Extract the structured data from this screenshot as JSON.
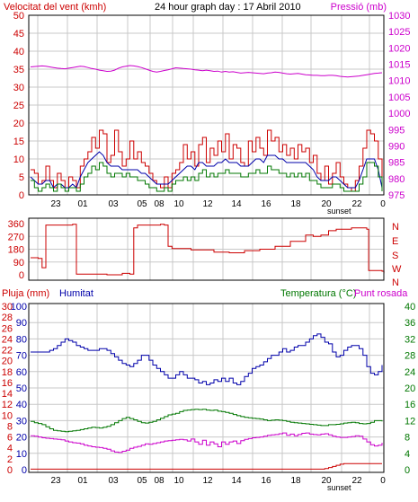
{
  "colors": {
    "red": "#cc0000",
    "blue": "#0000aa",
    "green": "#007700",
    "magenta": "#cc00cc",
    "axis_left": "#cc0000",
    "axis_pressure": "#cc00cc",
    "grid": "#c8c8c8",
    "frame": "#000000"
  },
  "hour_ticks": [
    "23",
    "01",
    "03",
    "05",
    "08",
    "10",
    "12",
    "14",
    "16",
    "18",
    "20",
    "22",
    "0"
  ],
  "sunset_label": "sunset",
  "chart_data": [
    {
      "type": "line",
      "title": "24 hour graph day : 17 Abril 2010",
      "ylabel": "Velocitat del vent (kmh)",
      "y2label": "Pressió (mb)",
      "ylim": [
        0,
        50
      ],
      "y2lim": [
        975,
        1030
      ],
      "yticks": [
        "0",
        "5",
        "10",
        "15",
        "20",
        "25",
        "30",
        "35",
        "40",
        "45",
        "50"
      ],
      "y2ticks": [
        "975",
        "980",
        "985",
        "990",
        "995",
        "1000",
        "1005",
        "1010",
        "1015",
        "1020",
        "1025",
        "1030"
      ],
      "grid": true,
      "series": [
        {
          "color": "red",
          "axis": "left",
          "style": "step",
          "values": [
            7,
            6,
            3,
            4,
            8,
            4,
            2,
            6,
            4,
            2,
            5,
            4,
            2,
            8,
            10,
            12,
            16,
            13,
            18,
            17,
            9,
            11,
            18,
            12,
            8,
            10,
            15,
            10,
            12,
            9,
            8,
            6,
            4,
            3,
            2,
            5,
            2,
            6,
            7,
            9,
            14,
            10,
            12,
            8,
            14,
            16,
            9,
            13,
            11,
            15,
            12,
            17,
            10,
            14,
            13,
            9,
            8,
            15,
            12,
            16,
            13,
            11,
            18,
            15,
            16,
            12,
            14,
            11,
            13,
            10,
            14,
            12,
            13,
            9,
            11,
            6,
            4,
            8,
            3,
            6,
            9,
            5,
            3,
            2,
            1,
            4,
            8,
            13,
            18,
            17,
            15,
            10,
            2
          ]
        },
        {
          "color": "blue",
          "axis": "left",
          "style": "line",
          "values": [
            5,
            4,
            3,
            3,
            4,
            4,
            2,
            3,
            3,
            2,
            2,
            3,
            2,
            5,
            7,
            9,
            10,
            11,
            12,
            11,
            9,
            8,
            8,
            8,
            7,
            7,
            7,
            7,
            7,
            6,
            6,
            5,
            4,
            3,
            3,
            3,
            3,
            4,
            5,
            6,
            7,
            8,
            8,
            7,
            9,
            9,
            8,
            8,
            8,
            9,
            9,
            10,
            9,
            9,
            9,
            8,
            8,
            8,
            9,
            10,
            10,
            9,
            11,
            11,
            11,
            10,
            10,
            9,
            9,
            9,
            9,
            9,
            9,
            8,
            7,
            5,
            4,
            4,
            4,
            5,
            5,
            4,
            3,
            2,
            2,
            2,
            4,
            7,
            10,
            10,
            10,
            7,
            2
          ]
        },
        {
          "color": "green",
          "axis": "left",
          "style": "step",
          "values": [
            4,
            2,
            1,
            2,
            3,
            2,
            1,
            3,
            2,
            1,
            2,
            2,
            1,
            3,
            5,
            6,
            8,
            7,
            9,
            8,
            6,
            5,
            6,
            6,
            5,
            6,
            5,
            5,
            4,
            4,
            3,
            2,
            2,
            1,
            1,
            2,
            1,
            3,
            4,
            4,
            5,
            4,
            5,
            4,
            6,
            7,
            5,
            6,
            5,
            6,
            6,
            7,
            6,
            6,
            6,
            5,
            5,
            6,
            6,
            7,
            6,
            6,
            8,
            7,
            7,
            6,
            6,
            5,
            6,
            5,
            6,
            5,
            6,
            4,
            4,
            3,
            2,
            2,
            2,
            3,
            3,
            2,
            1,
            1,
            1,
            1,
            3,
            5,
            9,
            9,
            8,
            5,
            1
          ]
        },
        {
          "color": "magenta",
          "axis": "right",
          "style": "line",
          "values": [
            1014.2,
            1014.3,
            1014.4,
            1014.5,
            1014.4,
            1014.2,
            1014.0,
            1013.8,
            1013.7,
            1013.6,
            1013.8,
            1014.0,
            1014.2,
            1014.4,
            1014.3,
            1014.0,
            1013.7,
            1013.5,
            1013.2,
            1013.0,
            1012.8,
            1012.9,
            1013.2,
            1013.8,
            1014.2,
            1014.4,
            1014.6,
            1014.5,
            1014.3,
            1014.0,
            1013.6,
            1013.2,
            1012.8,
            1012.6,
            1012.8,
            1013.1,
            1013.3,
            1013.6,
            1013.9,
            1013.8,
            1013.7,
            1013.6,
            1013.5,
            1013.3,
            1013.2,
            1013.0,
            1013.2,
            1013.0,
            1012.8,
            1012.9,
            1012.6,
            1012.8,
            1012.6,
            1012.7,
            1012.5,
            1012.3,
            1012.4,
            1012.5,
            1012.4,
            1012.3,
            1012.2,
            1012.1,
            1012.3,
            1012.4,
            1012.6,
            1012.5,
            1012.3,
            1012.1,
            1012.0,
            1012.1,
            1012.2,
            1012.0,
            1011.8,
            1011.7,
            1011.6,
            1011.6,
            1011.5,
            1011.5,
            1011.6,
            1011.6,
            1011.5,
            1011.3,
            1011.2,
            1011.1,
            1011.2,
            1011.3,
            1011.4,
            1011.6,
            1011.8,
            1012.0,
            1012.2,
            1012.3,
            1012.4
          ]
        }
      ]
    },
    {
      "type": "line",
      "yticks": [
        "0",
        "90",
        "180",
        "270",
        "360"
      ],
      "y2ticks": [
        "N",
        "E",
        "S",
        "W",
        "N"
      ],
      "ylim": [
        0,
        360
      ],
      "grid": true,
      "series": [
        {
          "color": "red",
          "axis": "left",
          "style": "step",
          "points": [
            [
              0,
              120
            ],
            [
              2,
              115
            ],
            [
              3,
              50
            ],
            [
              4,
              350
            ],
            [
              10,
              350
            ],
            [
              11,
              355
            ],
            [
              12,
              5
            ],
            [
              20,
              0
            ],
            [
              24,
              10
            ],
            [
              26,
              5
            ],
            [
              27,
              330
            ],
            [
              28,
              350
            ],
            [
              33,
              350
            ],
            [
              34,
              355
            ],
            [
              35,
              350
            ],
            [
              36,
              200
            ],
            [
              37,
              185
            ],
            [
              42,
              175
            ],
            [
              48,
              160
            ],
            [
              52,
              155
            ],
            [
              56,
              170
            ],
            [
              60,
              180
            ],
            [
              64,
              200
            ],
            [
              68,
              235
            ],
            [
              72,
              280
            ],
            [
              74,
              270
            ],
            [
              76,
              280
            ],
            [
              78,
              310
            ],
            [
              80,
              320
            ],
            [
              84,
              330
            ],
            [
              87,
              330
            ],
            [
              88,
              320
            ],
            [
              88.5,
              30
            ],
            [
              92,
              25
            ],
            [
              92.5,
              10
            ]
          ]
        }
      ]
    },
    {
      "type": "line",
      "ylabel": "Pluja (mm)",
      "ylabel2": "Humitat",
      "y2label": "Temperatura (°C)",
      "y2label2": "Punt rosada",
      "ylim": [
        0,
        30
      ],
      "yticks_rain": [
        "0",
        "2",
        "4",
        "6",
        "8",
        "10",
        "12",
        "14",
        "16",
        "18",
        "20",
        "22",
        "24",
        "26",
        "28",
        "30"
      ],
      "yticks_humidity": [
        "0",
        "10",
        "20",
        "30",
        "40",
        "50",
        "60",
        "70",
        "80",
        "90",
        "100"
      ],
      "y2ticks": [
        "0",
        "4",
        "8",
        "12",
        "16",
        "20",
        "24",
        "28",
        "32",
        "36",
        "40"
      ],
      "grid": true,
      "series": [
        {
          "color": "red",
          "axis": "rain",
          "style": "step",
          "values": [
            0.1,
            0.1,
            0.1,
            0.1,
            0.1,
            0.1,
            0.1,
            0.1,
            0.1,
            0.1,
            0.1,
            0.1,
            0.1,
            0.1,
            0.1,
            0.1,
            0.1,
            0.1,
            0.1,
            0.1,
            0.1,
            0.1,
            0.1,
            0.1,
            0.1,
            0.1,
            0.1,
            0.1,
            0.1,
            0.1,
            0.1,
            0.1,
            0.1,
            0.1,
            0.1,
            0.1,
            0.1,
            0.1,
            0.1,
            0.1,
            0.1,
            0.1,
            0.1,
            0.1,
            0.1,
            0.1,
            0.1,
            0.1,
            0.1,
            0.1,
            0.1,
            0.1,
            0.1,
            0.1,
            0.1,
            0.1,
            0.1,
            0.1,
            0.1,
            0.1,
            0.1,
            0.1,
            0.1,
            0.1,
            0.1,
            0.1,
            0.1,
            0.1,
            0.1,
            0.1,
            0.1,
            0.1,
            0.1,
            0.1,
            0.1,
            0.1,
            0.1,
            0.2,
            0.4,
            0.6,
            0.8,
            1.0,
            1.1,
            1.1,
            1.1,
            1.1,
            1.1,
            1.1,
            1.1,
            1.1,
            1.1,
            1.1,
            1.1
          ]
        },
        {
          "color": "blue",
          "axis": "humidity",
          "style": "step",
          "values": [
            72,
            72,
            72,
            72,
            72,
            73,
            74,
            76,
            78,
            80,
            79,
            78,
            76,
            75,
            74,
            73,
            73,
            73,
            74,
            74,
            73,
            71,
            69,
            67,
            65,
            64,
            63,
            65,
            67,
            70,
            70,
            67,
            64,
            62,
            60,
            58,
            56,
            56,
            58,
            60,
            58,
            56,
            56,
            55,
            53,
            54,
            52,
            53,
            55,
            54,
            56,
            54,
            56,
            53,
            52,
            54,
            57,
            59,
            62,
            63,
            64,
            66,
            68,
            70,
            70,
            72,
            74,
            72,
            73,
            75,
            76,
            76,
            78,
            80,
            82,
            83,
            81,
            78,
            77,
            72,
            69,
            70,
            73,
            75,
            76,
            76,
            74,
            70,
            63,
            59,
            58,
            60,
            64
          ]
        },
        {
          "color": "green",
          "axis": "right",
          "style": "step",
          "values": [
            11.8,
            11.5,
            11.3,
            11.0,
            10.5,
            10.0,
            9.6,
            9.5,
            9.4,
            9.3,
            9.4,
            9.5,
            9.6,
            9.8,
            10.0,
            10.2,
            10.4,
            10.3,
            10.2,
            10.4,
            10.6,
            11.0,
            11.5,
            12.0,
            12.5,
            12.8,
            12.5,
            12.2,
            11.8,
            11.5,
            11.4,
            11.6,
            11.8,
            12.2,
            12.6,
            13.0,
            13.4,
            13.6,
            13.8,
            14.2,
            14.5,
            14.6,
            14.7,
            14.8,
            14.7,
            14.8,
            14.6,
            14.5,
            14.6,
            14.3,
            14.2,
            14.0,
            13.8,
            13.5,
            13.2,
            13.0,
            12.8,
            12.7,
            12.6,
            12.5,
            12.4,
            12.2,
            12.0,
            12.1,
            12.2,
            12.1,
            12.0,
            11.8,
            11.6,
            11.5,
            11.4,
            11.3,
            11.2,
            11.1,
            11.0,
            10.9,
            10.8,
            10.8,
            11.0,
            11.0,
            11.1,
            11.2,
            11.4,
            11.5,
            11.6,
            11.5,
            11.3,
            11.2,
            11.3,
            11.6,
            12.0,
            12.0,
            11.8
          ]
        },
        {
          "color": "magenta",
          "axis": "right",
          "style": "step",
          "values": [
            8.3,
            8.2,
            8.0,
            7.8,
            7.7,
            7.6,
            7.5,
            7.4,
            7.3,
            7.0,
            6.8,
            6.6,
            6.5,
            6.3,
            6.0,
            5.8,
            5.6,
            5.5,
            5.4,
            5.2,
            5.0,
            4.6,
            4.3,
            4.2,
            4.5,
            4.8,
            5.2,
            5.5,
            5.7,
            6.0,
            6.3,
            6.2,
            6.4,
            6.6,
            6.8,
            7.0,
            7.1,
            7.2,
            7.3,
            7.4,
            7.3,
            7.0,
            7.5,
            6.8,
            6.2,
            7.2,
            6.0,
            6.8,
            6.3,
            5.6,
            6.8,
            6.2,
            6.8,
            7.0,
            6.4,
            7.1,
            7.4,
            7.6,
            7.8,
            7.9,
            8.0,
            8.2,
            8.4,
            8.5,
            8.6,
            8.8,
            9.0,
            8.4,
            8.7,
            8.3,
            8.6,
            8.9,
            9.0,
            8.7,
            8.6,
            8.5,
            8.7,
            8.8,
            8.5,
            8.2,
            8.0,
            7.9,
            7.9,
            8.0,
            8.1,
            8.3,
            8.2,
            7.5,
            6.8,
            6.1,
            5.8,
            6.0,
            6.6
          ]
        }
      ]
    }
  ]
}
